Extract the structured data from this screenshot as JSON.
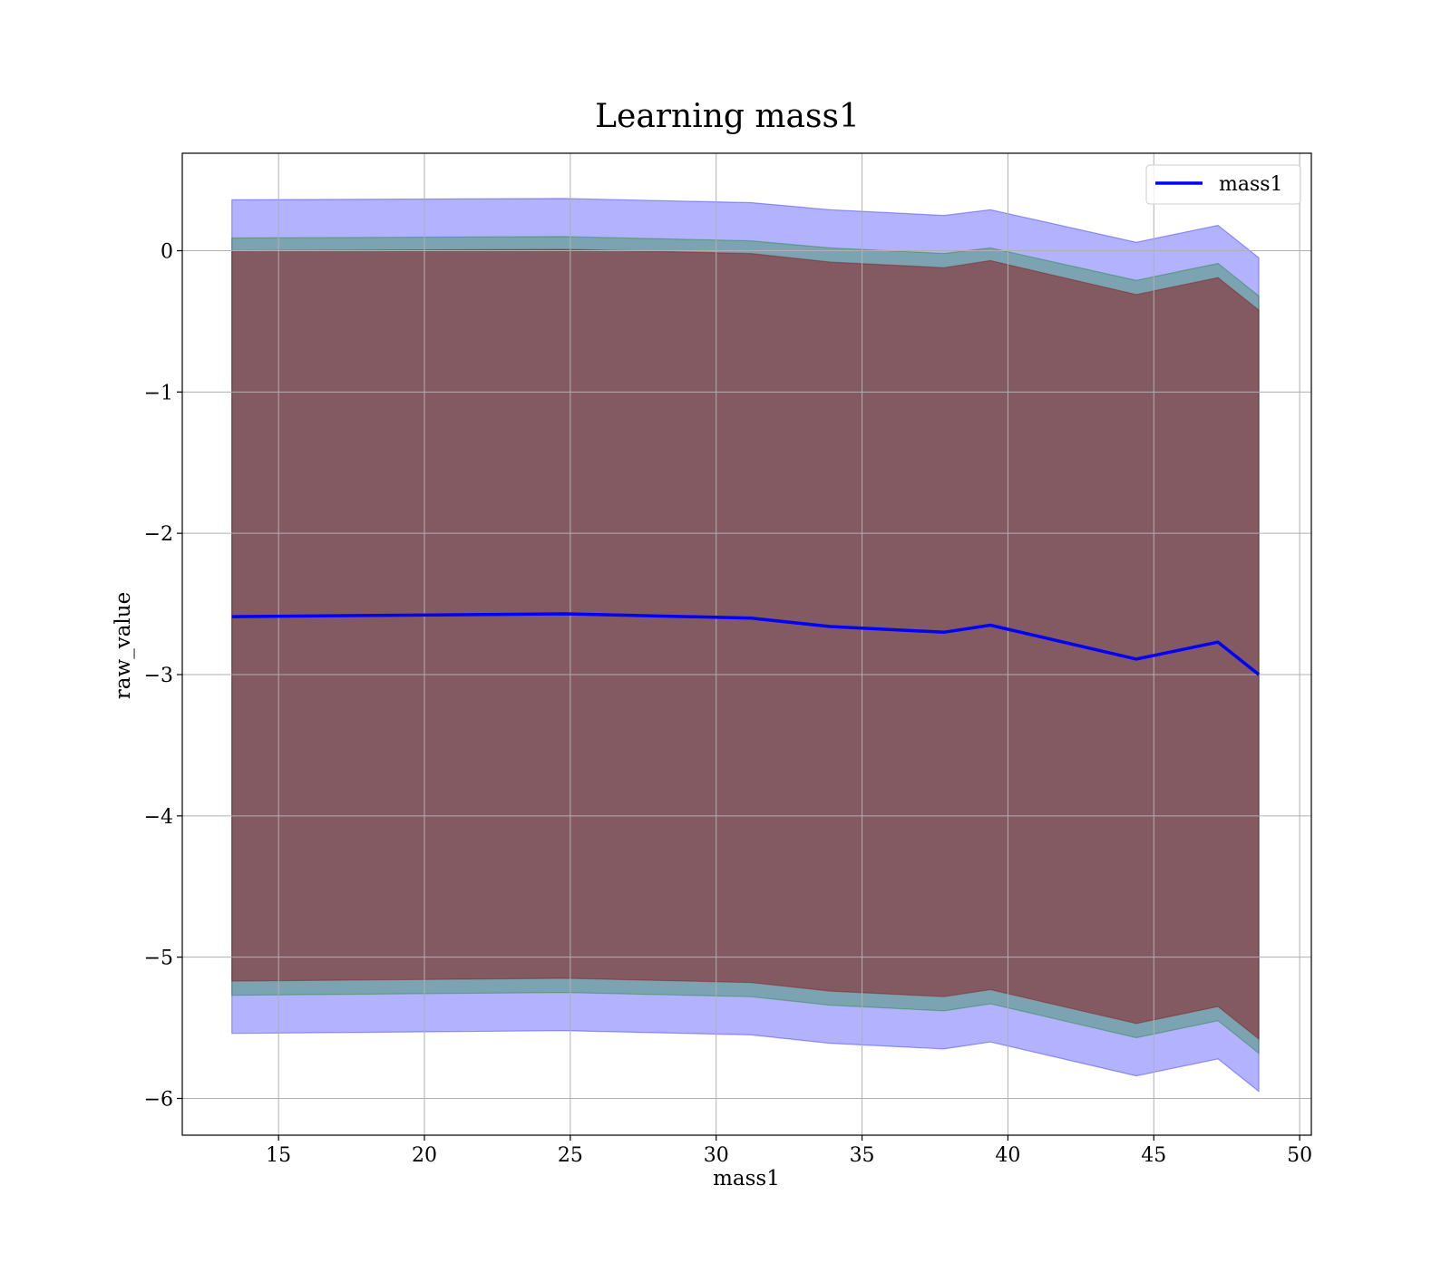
{
  "chart_data": {
    "type": "line",
    "title": "Learning mass1",
    "xlabel": "mass1",
    "ylabel": "raw_value",
    "xlim": [
      11.7,
      50.4
    ],
    "ylim": [
      -6.26,
      0.69
    ],
    "xticks": [
      15,
      20,
      25,
      30,
      35,
      40,
      45,
      50
    ],
    "yticks": [
      0,
      -1,
      -2,
      -3,
      -4,
      -5,
      -6
    ],
    "ytick_labels": [
      "0",
      "−1",
      "−2",
      "−3",
      "−4",
      "−5",
      "−6"
    ],
    "grid": true,
    "legend": {
      "position": "top-right",
      "entries": [
        "mass1"
      ]
    },
    "x": [
      13.4,
      24.8,
      31.2,
      33.9,
      37.8,
      39.4,
      44.4,
      47.2,
      48.6
    ],
    "series": [
      {
        "name": "mass1",
        "color": "#0000ff",
        "values": [
          -2.59,
          -2.57,
          -2.6,
          -2.66,
          -2.7,
          -2.65,
          -2.89,
          -2.77,
          -3.0
        ]
      }
    ],
    "bands": [
      {
        "color": "#0000ff",
        "opacity": 0.3,
        "upper": [
          0.36,
          0.37,
          0.34,
          0.29,
          0.25,
          0.29,
          0.06,
          0.18,
          -0.05
        ],
        "lower": [
          -5.54,
          -5.52,
          -5.55,
          -5.61,
          -5.65,
          -5.6,
          -5.84,
          -5.72,
          -5.95
        ]
      },
      {
        "color": "#008000",
        "opacity": 0.3,
        "upper": [
          0.09,
          0.1,
          0.07,
          0.02,
          -0.02,
          0.02,
          -0.21,
          -0.09,
          -0.32
        ],
        "lower": [
          -5.27,
          -5.25,
          -5.28,
          -5.34,
          -5.38,
          -5.33,
          -5.57,
          -5.45,
          -5.68
        ]
      },
      {
        "color": "#8b0000",
        "opacity": 0.45,
        "upper": [
          0.0,
          0.01,
          -0.02,
          -0.08,
          -0.12,
          -0.07,
          -0.31,
          -0.19,
          -0.42
        ],
        "lower": [
          -5.17,
          -5.15,
          -5.18,
          -5.24,
          -5.28,
          -5.23,
          -5.47,
          -5.35,
          -5.58
        ]
      }
    ]
  }
}
